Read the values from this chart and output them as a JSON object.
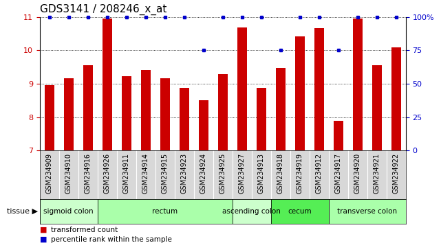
{
  "title": "GDS3141 / 208246_x_at",
  "samples": [
    "GSM234909",
    "GSM234910",
    "GSM234916",
    "GSM234926",
    "GSM234911",
    "GSM234914",
    "GSM234915",
    "GSM234923",
    "GSM234924",
    "GSM234925",
    "GSM234927",
    "GSM234913",
    "GSM234918",
    "GSM234919",
    "GSM234912",
    "GSM234917",
    "GSM234920",
    "GSM234921",
    "GSM234922"
  ],
  "bar_values": [
    8.96,
    9.17,
    9.56,
    10.95,
    9.22,
    9.42,
    9.17,
    8.88,
    8.5,
    9.3,
    10.68,
    8.88,
    9.47,
    10.43,
    10.67,
    7.9,
    10.95,
    9.55,
    10.1
  ],
  "percentile_rank": [
    100,
    100,
    100,
    100,
    100,
    100,
    100,
    100,
    75,
    100,
    100,
    100,
    75,
    100,
    100,
    75,
    100,
    100,
    100
  ],
  "bar_color": "#cc0000",
  "dot_color": "#0000cc",
  "ylim_left": [
    7,
    11
  ],
  "ylim_right": [
    0,
    100
  ],
  "yticks_left": [
    7,
    8,
    9,
    10,
    11
  ],
  "yticks_right": [
    0,
    25,
    50,
    75,
    100
  ],
  "grid_yticks": [
    8,
    9,
    10
  ],
  "tissue_groups": [
    {
      "label": "sigmoid colon",
      "start": 0,
      "end": 3,
      "color": "#ccffcc"
    },
    {
      "label": "rectum",
      "start": 3,
      "end": 10,
      "color": "#aaffaa"
    },
    {
      "label": "ascending colon",
      "start": 10,
      "end": 12,
      "color": "#ccffcc"
    },
    {
      "label": "cecum",
      "start": 12,
      "end": 15,
      "color": "#55ee55"
    },
    {
      "label": "transverse colon",
      "start": 15,
      "end": 19,
      "color": "#aaffaa"
    }
  ],
  "bar_width": 0.5,
  "tick_label_fontsize": 7,
  "title_fontsize": 11
}
